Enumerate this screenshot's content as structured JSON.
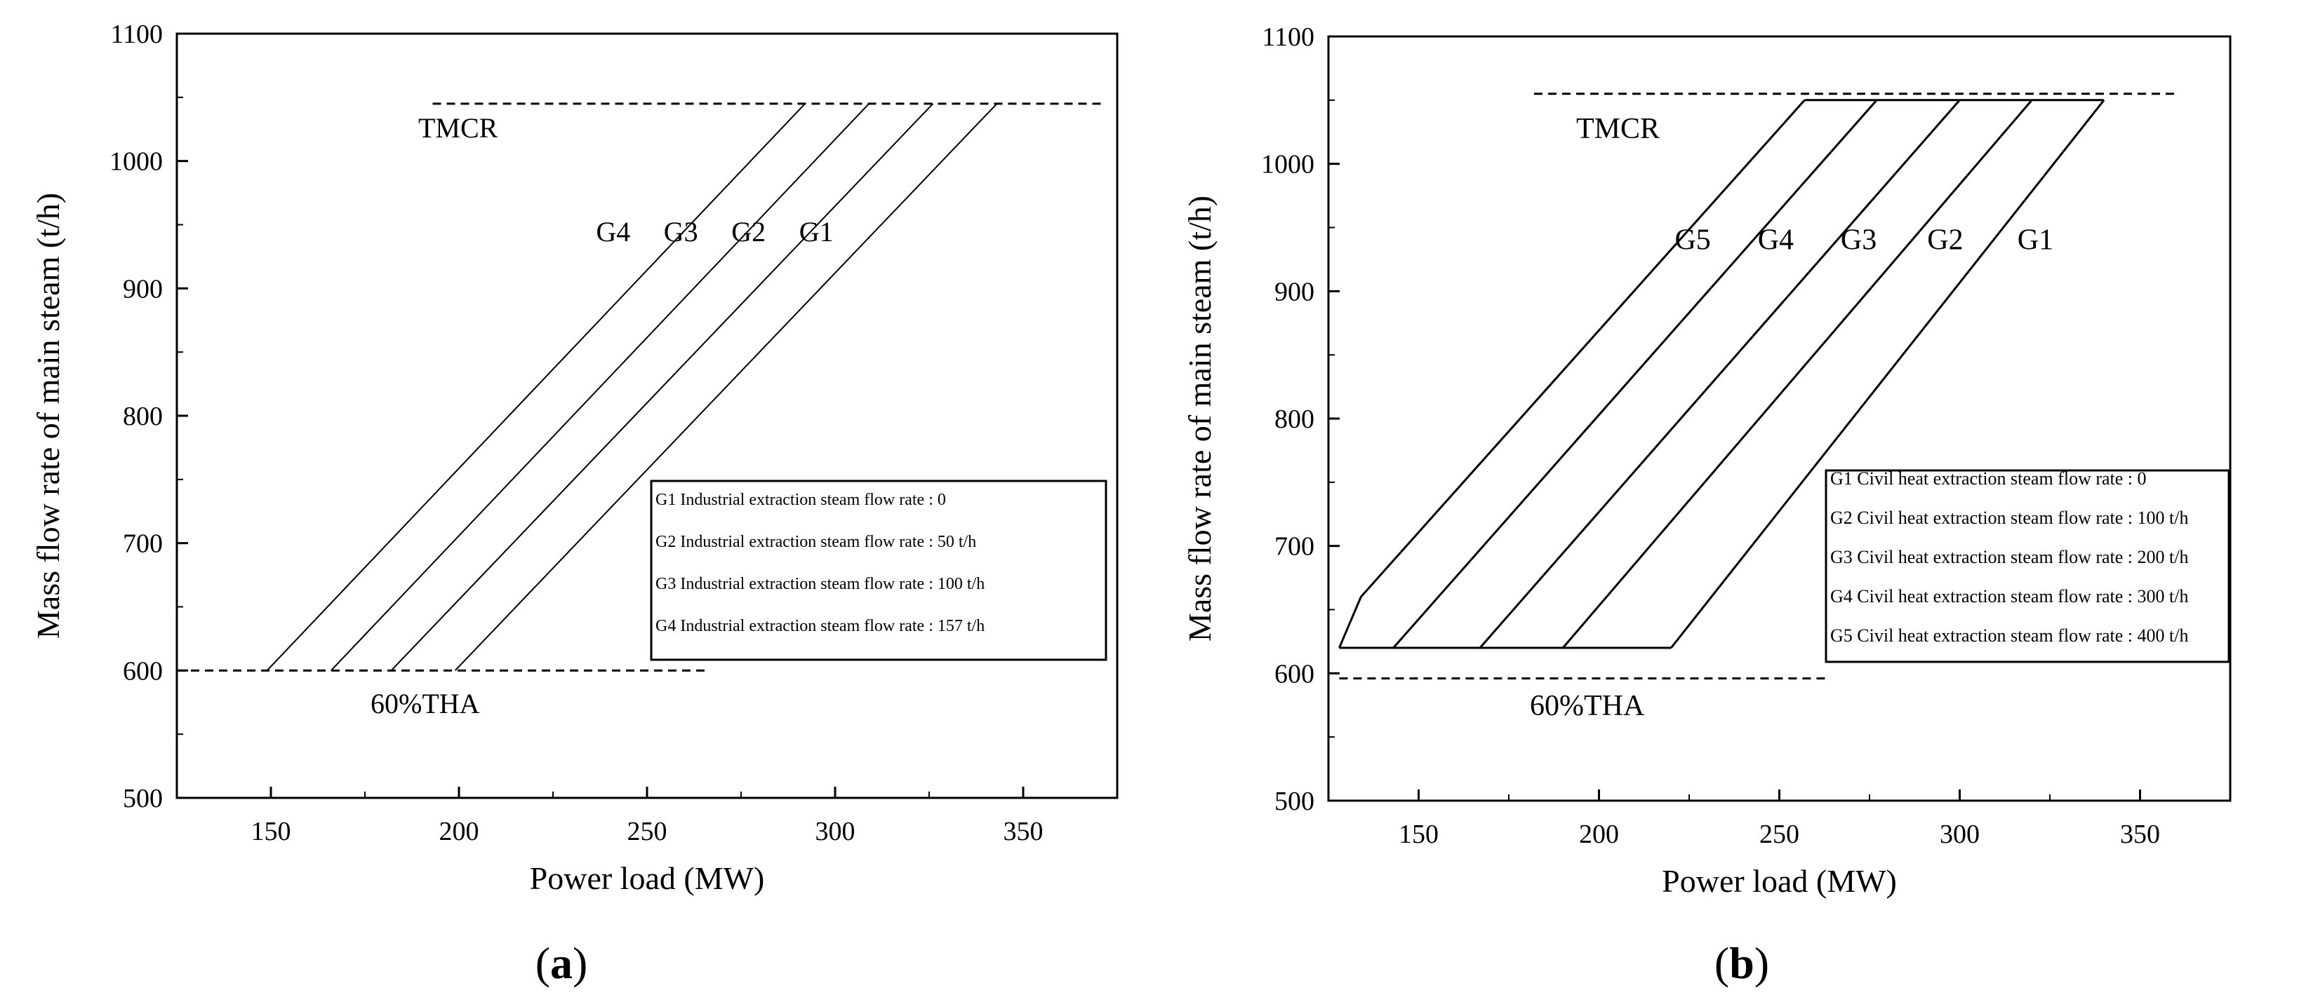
{
  "panels": [
    {
      "id": "a",
      "caption": "(a)",
      "chart_data": {
        "type": "line",
        "xlabel": "Power load (MW)",
        "ylabel": "Mass flow rate of main steam (t/h)",
        "xlim": [
          125,
          375
        ],
        "ylim": [
          500,
          1100
        ],
        "xticks": [
          150,
          200,
          250,
          300,
          350
        ],
        "yticks": [
          500,
          600,
          700,
          800,
          900,
          1000,
          1100
        ],
        "grid": false,
        "legend_position": "lower-right",
        "reference_lines": [
          {
            "label": "TMCR",
            "y": 1045,
            "x_range": [
              193,
              372
            ]
          },
          {
            "label": "60%THA",
            "y": 600,
            "x_range": [
              125,
              266
            ]
          }
        ],
        "series": [
          {
            "name": "G1",
            "points": [
              [
                199,
                600
              ],
              [
                343,
                1045
              ]
            ]
          },
          {
            "name": "G2",
            "points": [
              [
                182,
                600
              ],
              [
                326,
                1045
              ]
            ]
          },
          {
            "name": "G3",
            "points": [
              [
                166,
                600
              ],
              [
                309,
                1045
              ]
            ]
          },
          {
            "name": "G4",
            "points": [
              [
                149,
                600
              ],
              [
                292,
                1045
              ]
            ]
          }
        ],
        "curve_labels": [
          {
            "text": "G4",
            "x": 241,
            "y": 937
          },
          {
            "text": "G3",
            "x": 259,
            "y": 937
          },
          {
            "text": "G2",
            "x": 277,
            "y": 937
          },
          {
            "text": "G1",
            "x": 295,
            "y": 937
          }
        ],
        "legend": [
          "G1 Industrial extraction steam flow rate : 0",
          "G2 Industrial extraction steam flow rate : 50 t/h",
          "G3 Industrial extraction steam flow rate : 100 t/h",
          "G4 Industrial extraction steam flow rate : 157 t/h"
        ]
      }
    },
    {
      "id": "b",
      "caption": "(b)",
      "chart_data": {
        "type": "line",
        "xlabel": "Power load (MW)",
        "ylabel": "Mass flow rate of main steam (t/h)",
        "xlim": [
          125,
          375
        ],
        "ylim": [
          500,
          1100
        ],
        "xticks": [
          150,
          200,
          250,
          300,
          350
        ],
        "yticks": [
          500,
          600,
          700,
          800,
          900,
          1000,
          1100
        ],
        "grid": false,
        "legend_position": "lower-right",
        "reference_lines": [
          {
            "label": "TMCR",
            "y": 1055,
            "x_range": [
              182,
              361
            ]
          },
          {
            "label": "60%THA",
            "y": 596,
            "x_range": [
              128,
              263
            ]
          }
        ],
        "series": [
          {
            "name": "G1",
            "points": [
              [
                220,
                620
              ],
              [
                340,
                1050
              ]
            ]
          },
          {
            "name": "G2",
            "points": [
              [
                190,
                620
              ],
              [
                320,
                1050
              ]
            ]
          },
          {
            "name": "G3",
            "points": [
              [
                167,
                620
              ],
              [
                300,
                1050
              ]
            ]
          },
          {
            "name": "G4",
            "points": [
              [
                143,
                620
              ],
              [
                277,
                1050
              ]
            ]
          },
          {
            "name": "G5",
            "points": [
              [
                128,
                620
              ],
              [
                134,
                660
              ],
              [
                257,
                1050
              ]
            ]
          },
          {
            "name": "",
            "points": [
              [
                128,
                620
              ],
              [
                220,
                620
              ]
            ]
          },
          {
            "name": "",
            "points": [
              [
                257,
                1050
              ],
              [
                340,
                1050
              ]
            ]
          }
        ],
        "curve_labels": [
          {
            "text": "G5",
            "x": 226,
            "y": 933
          },
          {
            "text": "G4",
            "x": 249,
            "y": 933
          },
          {
            "text": "G3",
            "x": 272,
            "y": 933
          },
          {
            "text": "G2",
            "x": 296,
            "y": 933
          },
          {
            "text": "G1",
            "x": 321,
            "y": 933
          }
        ],
        "legend": [
          "G1 Civil heat extraction steam flow rate : 0",
          "G2 Civil heat extraction steam flow rate : 100 t/h",
          "G3 Civil heat extraction steam flow rate : 200 t/h",
          "G4 Civil heat extraction steam flow rate : 300 t/h",
          "G5 Civil heat extraction steam flow rate : 400 t/h"
        ]
      }
    }
  ]
}
